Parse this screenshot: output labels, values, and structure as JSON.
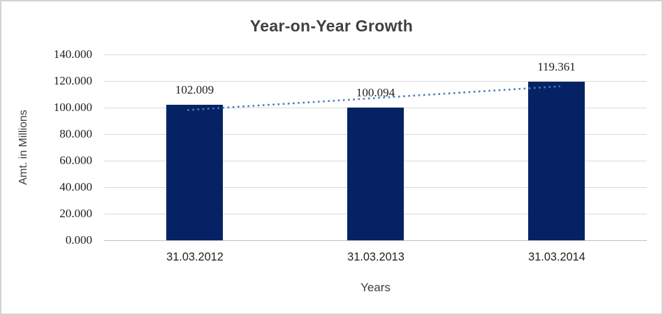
{
  "chart_data": {
    "type": "bar",
    "title": "Year-on-Year Growth",
    "xlabel": "Years",
    "ylabel": "Amt. in Millions",
    "categories": [
      "31.03.2012",
      "31.03.2013",
      "31.03.2014"
    ],
    "values": [
      102.009,
      100.094,
      119.361
    ],
    "value_labels": [
      "102.009",
      "100.094",
      "119.361"
    ],
    "ylim": [
      0,
      140
    ],
    "ytick_values": [
      0,
      20,
      40,
      60,
      80,
      100,
      120,
      140
    ],
    "ytick_labels": [
      "0.000",
      "20.000",
      "40.000",
      "60.000",
      "80.000",
      "100.000",
      "120.000",
      "140.000"
    ],
    "grid": true,
    "legend": false,
    "trendline": {
      "type": "linear",
      "style": "dotted"
    }
  },
  "colors": {
    "bar": "#052364",
    "trendline": "#4a7ebb",
    "gridline": "#d9d9d9",
    "axis_line": "#bfbfbf",
    "title_text": "#3f3f3f",
    "tick_text": "#1f1f1f",
    "border": "#d2d2d2",
    "background": "#ffffff"
  }
}
